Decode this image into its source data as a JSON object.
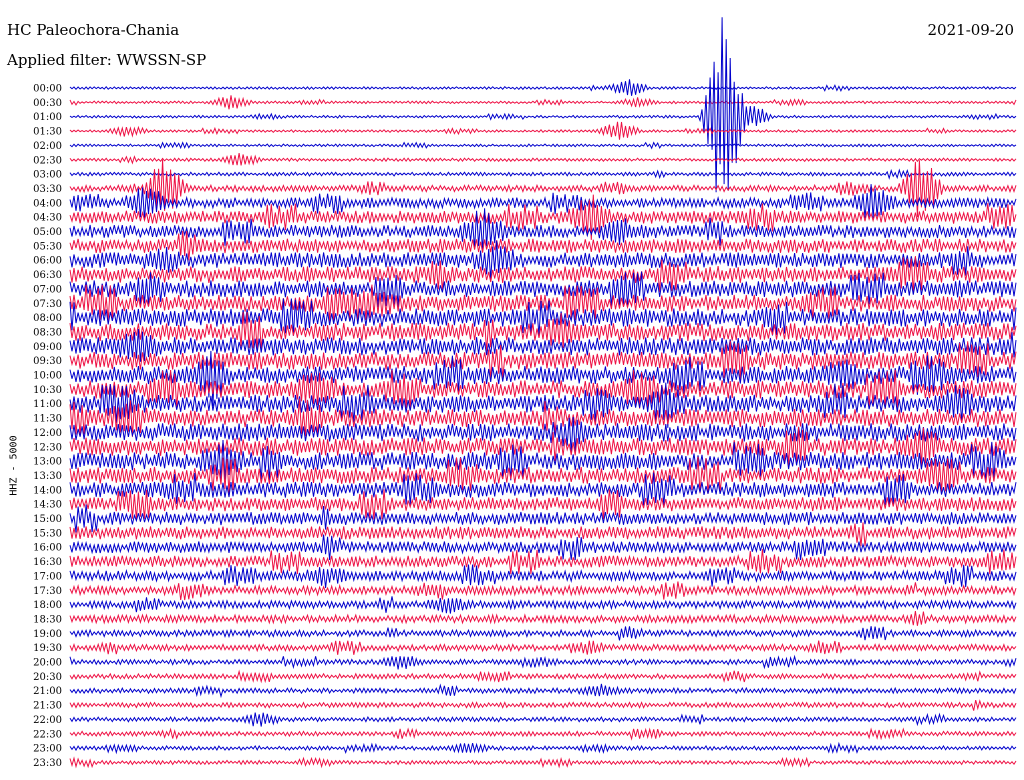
{
  "header": {
    "station": "HC Paleochora-Chania",
    "date": "2021-09-20",
    "filter": "Applied filter: WWSSN-SP",
    "channel": "HHZ - 5000"
  },
  "colors": {
    "even_row": "#0000cc",
    "odd_row": "#ee1144"
  },
  "chart_data": {
    "type": "line",
    "title": "HC Paleochora-Chania",
    "ylabel": "HHZ - 5000",
    "rows": [
      "00:00",
      "00:30",
      "01:00",
      "01:30",
      "02:00",
      "02:30",
      "03:00",
      "03:30",
      "04:00",
      "04:30",
      "05:00",
      "05:30",
      "06:00",
      "06:30",
      "07:00",
      "07:30",
      "08:00",
      "08:30",
      "09:00",
      "09:30",
      "10:00",
      "10:30",
      "11:00",
      "11:30",
      "12:00",
      "12:30",
      "13:00",
      "13:30",
      "14:00",
      "14:30",
      "15:00",
      "15:30",
      "16:00",
      "16:30",
      "17:00",
      "17:30",
      "18:00",
      "18:30",
      "19:00",
      "19:30",
      "20:00",
      "20:30",
      "21:00",
      "21:30",
      "22:00",
      "22:30",
      "23:00",
      "23:30"
    ],
    "noise_level": [
      1,
      1,
      1,
      1,
      1,
      1.2,
      1.4,
      2.5,
      4,
      5,
      5,
      5.5,
      6,
      6.5,
      6.5,
      6.5,
      7,
      7,
      7,
      7,
      7,
      7,
      7,
      7,
      7,
      7,
      7,
      6.5,
      6,
      5.5,
      5,
      5,
      4.5,
      4.5,
      4,
      3.5,
      3,
      3,
      2.5,
      2.5,
      2,
      2,
      2,
      2,
      1.8,
      1.8,
      1.6,
      1.5
    ],
    "events": [
      {
        "row": 0,
        "t": 0.59,
        "amp": 8
      },
      {
        "row": 1,
        "t": 0.17,
        "amp": 6
      },
      {
        "row": 1,
        "t": 0.6,
        "amp": 4
      },
      {
        "row": 2,
        "t": 0.69,
        "amp": 95
      },
      {
        "row": 2,
        "t": 0.72,
        "amp": 10
      },
      {
        "row": 3,
        "t": 0.06,
        "amp": 5
      },
      {
        "row": 3,
        "t": 0.58,
        "amp": 9
      },
      {
        "row": 5,
        "t": 0.18,
        "amp": 6
      },
      {
        "row": 7,
        "t": 0.1,
        "amp": 30
      },
      {
        "row": 7,
        "t": 0.9,
        "amp": 30
      },
      {
        "row": 8,
        "t": 0.08,
        "amp": 14
      },
      {
        "row": 8,
        "t": 0.85,
        "amp": 16
      },
      {
        "row": 9,
        "t": 0.55,
        "amp": 20
      },
      {
        "row": 10,
        "t": 0.44,
        "amp": 12
      },
      {
        "row": 10,
        "t": 0.58,
        "amp": 10
      },
      {
        "row": 12,
        "t": 0.1,
        "amp": 8
      },
      {
        "row": 12,
        "t": 0.45,
        "amp": 14
      },
      {
        "row": 15,
        "t": 0.32,
        "amp": 12
      },
      {
        "row": 17,
        "t": 0.52,
        "amp": 12
      },
      {
        "row": 18,
        "t": 0.07,
        "amp": 12
      },
      {
        "row": 20,
        "t": 0.15,
        "amp": 12
      },
      {
        "row": 20,
        "t": 0.82,
        "amp": 10
      },
      {
        "row": 21,
        "t": 0.26,
        "amp": 12
      },
      {
        "row": 22,
        "t": 0.63,
        "amp": 16
      },
      {
        "row": 22,
        "t": 0.94,
        "amp": 12
      },
      {
        "row": 23,
        "t": 0.06,
        "amp": 14
      },
      {
        "row": 24,
        "t": 0.53,
        "amp": 12
      },
      {
        "row": 25,
        "t": 0.9,
        "amp": 14
      },
      {
        "row": 26,
        "t": 0.16,
        "amp": 12
      },
      {
        "row": 34,
        "t": 0.27,
        "amp": 7
      },
      {
        "row": 36,
        "t": 0.4,
        "amp": 7
      },
      {
        "row": 40,
        "t": 0.35,
        "amp": 6
      },
      {
        "row": 42,
        "t": 0.56,
        "amp": 5
      },
      {
        "row": 44,
        "t": 0.2,
        "amp": 6
      },
      {
        "row": 46,
        "t": 0.42,
        "amp": 5
      }
    ]
  }
}
